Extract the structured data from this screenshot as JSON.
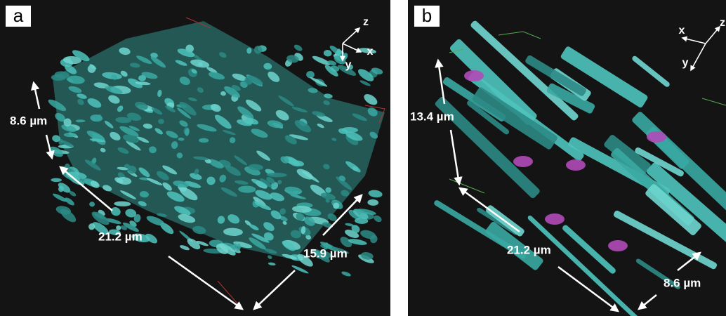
{
  "panels": [
    {
      "label": "a",
      "axes": [
        "z",
        "x",
        "y"
      ],
      "dimensions": [
        "8.6 µm",
        "21.2 µm",
        "15.9 µm"
      ]
    },
    {
      "label": "b",
      "axes": [
        "z",
        "x",
        "y"
      ],
      "dimensions": [
        "13.4 µm",
        "21.2 µm",
        "8.6 µm"
      ]
    }
  ]
}
